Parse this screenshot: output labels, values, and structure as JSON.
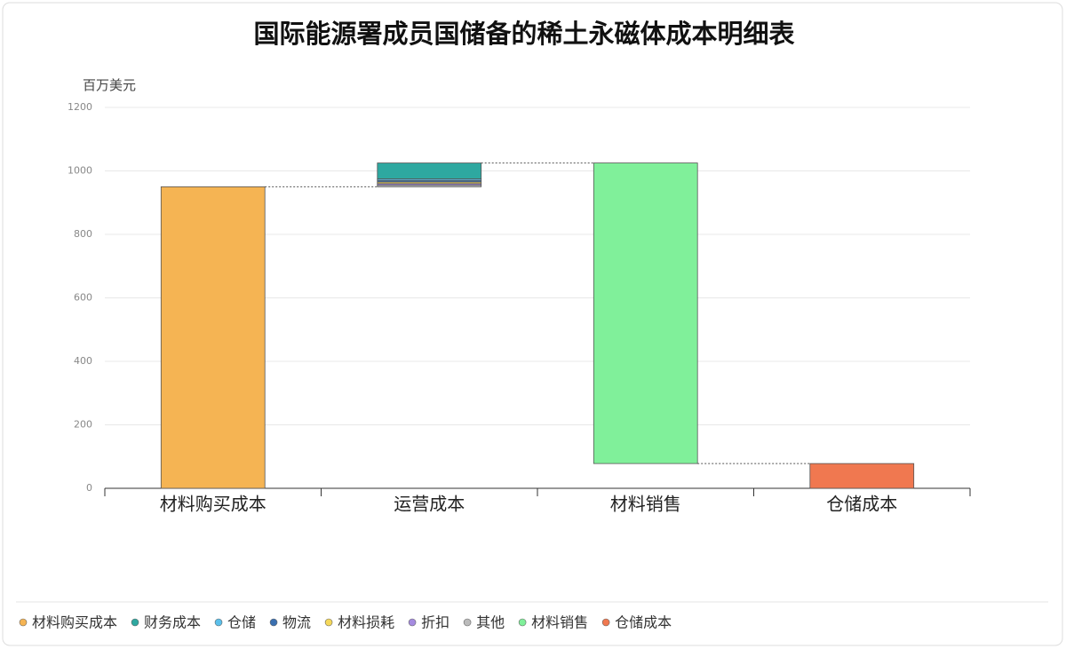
{
  "chart_data": {
    "type": "waterfall",
    "title": "国际能源署成员国储备的稀土永磁体成本明细表",
    "y_label": "百万美元",
    "categories": [
      "材料购买成本",
      "运营成本",
      "材料销售",
      "仓储成本"
    ],
    "series": [
      {
        "name": "材料购买成本",
        "color": "#f5b453",
        "values": [
          950,
          null,
          null,
          null
        ]
      },
      {
        "name": "财务成本",
        "color": "#2ea8a0",
        "values": [
          null,
          50,
          null,
          null
        ]
      },
      {
        "name": "仓储",
        "color": "#5bc0eb",
        "values": [
          null,
          5,
          null,
          null
        ]
      },
      {
        "name": "物流",
        "color": "#3a6fb0",
        "values": [
          null,
          5,
          null,
          null
        ]
      },
      {
        "name": "材料损耗",
        "color": "#f5d85a",
        "values": [
          null,
          5,
          null,
          null
        ]
      },
      {
        "name": "折扣",
        "color": "#a58be0",
        "values": [
          null,
          5,
          null,
          null
        ]
      },
      {
        "name": "其他",
        "color": "#bbbbbb",
        "values": [
          null,
          5,
          null,
          null
        ]
      },
      {
        "name": "材料销售",
        "color": "#80f09a",
        "values": [
          null,
          null,
          -947,
          null
        ]
      },
      {
        "name": "仓储成本",
        "color": "#f07850",
        "values": [
          null,
          null,
          null,
          78
        ]
      }
    ],
    "ylim": [
      0,
      1200
    ],
    "yticks": [
      0,
      200,
      400,
      600,
      800,
      1000,
      1200
    ],
    "grid": true
  }
}
